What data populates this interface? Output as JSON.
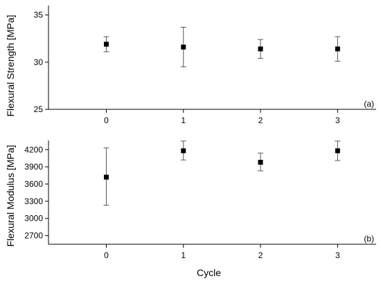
{
  "chart_data": [
    {
      "type": "scatter",
      "panel_label": "(a)",
      "ylabel": "Flexural Strength [MPa]",
      "x": [
        0,
        1,
        2,
        3
      ],
      "categories": [
        "0",
        "1",
        "2",
        "3"
      ],
      "values": [
        31.9,
        31.6,
        31.4,
        31.4
      ],
      "error_low": [
        31.1,
        29.5,
        30.4,
        30.1
      ],
      "error_high": [
        32.7,
        33.7,
        32.4,
        32.7
      ],
      "xlim": [
        -0.75,
        3.5
      ],
      "ylim": [
        25,
        36
      ],
      "yticks": [
        25,
        30,
        35
      ],
      "grid": false,
      "show_xticklabels": true
    },
    {
      "type": "scatter",
      "panel_label": "(b)",
      "ylabel": "Flexural Modulus [MPa]",
      "xlabel": "Cycle",
      "x": [
        0,
        1,
        2,
        3
      ],
      "categories": [
        "0",
        "1",
        "2",
        "3"
      ],
      "values": [
        3720,
        4180,
        3980,
        4180
      ],
      "error_low": [
        3230,
        4020,
        3830,
        4010
      ],
      "error_high": [
        4230,
        4350,
        4140,
        4350
      ],
      "xlim": [
        -0.75,
        3.5
      ],
      "ylim": [
        2550,
        4360
      ],
      "yticks": [
        2700,
        3000,
        3300,
        3600,
        3900,
        4200
      ],
      "grid": false,
      "show_xticklabels": true
    }
  ]
}
